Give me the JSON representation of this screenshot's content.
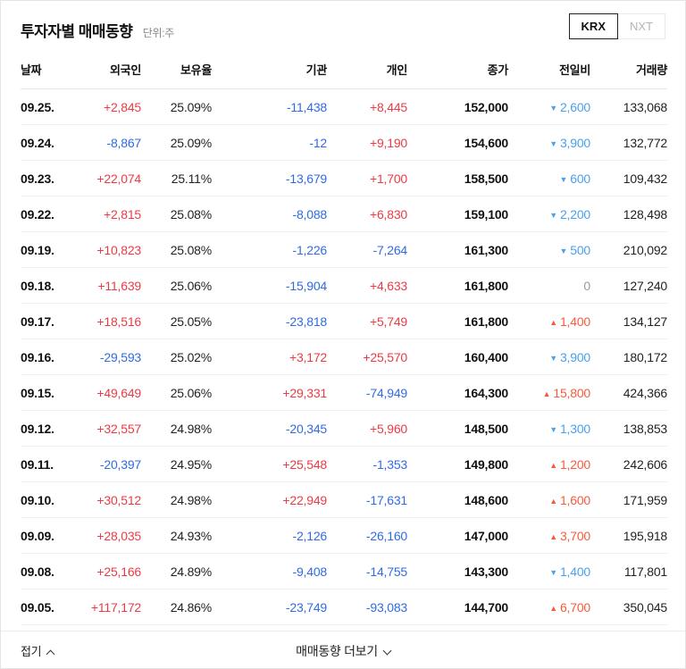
{
  "page": {
    "title": "투자자별 매매동향",
    "unit": "단위:주"
  },
  "market_tabs": [
    {
      "label": "KRX",
      "active": true
    },
    {
      "label": "NXT",
      "active": false
    }
  ],
  "colors": {
    "positive_red": "#ee3a44",
    "negative_blue": "#2f6be5",
    "change_up_red": "#f75b3b",
    "change_down_blue": "#49a0ef",
    "change_flat_gray": "#999999"
  },
  "table": {
    "columns": [
      "날짜",
      "외국인",
      "보유율",
      "기관",
      "개인",
      "종가",
      "전일비",
      "거래량"
    ],
    "rows": [
      {
        "date": "09.25.",
        "foreign": "+2,845",
        "ratio": "25.09%",
        "inst": "-11,438",
        "indiv": "+8,445",
        "close": "152,000",
        "change": "2,600",
        "dir": "down",
        "volume": "133,068"
      },
      {
        "date": "09.24.",
        "foreign": "-8,867",
        "ratio": "25.09%",
        "inst": "-12",
        "indiv": "+9,190",
        "close": "154,600",
        "change": "3,900",
        "dir": "down",
        "volume": "132,772"
      },
      {
        "date": "09.23.",
        "foreign": "+22,074",
        "ratio": "25.11%",
        "inst": "-13,679",
        "indiv": "+1,700",
        "close": "158,500",
        "change": "600",
        "dir": "down",
        "volume": "109,432"
      },
      {
        "date": "09.22.",
        "foreign": "+2,815",
        "ratio": "25.08%",
        "inst": "-8,088",
        "indiv": "+6,830",
        "close": "159,100",
        "change": "2,200",
        "dir": "down",
        "volume": "128,498"
      },
      {
        "date": "09.19.",
        "foreign": "+10,823",
        "ratio": "25.08%",
        "inst": "-1,226",
        "indiv": "-7,264",
        "close": "161,300",
        "change": "500",
        "dir": "down",
        "volume": "210,092"
      },
      {
        "date": "09.18.",
        "foreign": "+11,639",
        "ratio": "25.06%",
        "inst": "-15,904",
        "indiv": "+4,633",
        "close": "161,800",
        "change": "0",
        "dir": "flat",
        "volume": "127,240"
      },
      {
        "date": "09.17.",
        "foreign": "+18,516",
        "ratio": "25.05%",
        "inst": "-23,818",
        "indiv": "+5,749",
        "close": "161,800",
        "change": "1,400",
        "dir": "up",
        "volume": "134,127"
      },
      {
        "date": "09.16.",
        "foreign": "-29,593",
        "ratio": "25.02%",
        "inst": "+3,172",
        "indiv": "+25,570",
        "close": "160,400",
        "change": "3,900",
        "dir": "down",
        "volume": "180,172"
      },
      {
        "date": "09.15.",
        "foreign": "+49,649",
        "ratio": "25.06%",
        "inst": "+29,331",
        "indiv": "-74,949",
        "close": "164,300",
        "change": "15,800",
        "dir": "up",
        "volume": "424,366"
      },
      {
        "date": "09.12.",
        "foreign": "+32,557",
        "ratio": "24.98%",
        "inst": "-20,345",
        "indiv": "+5,960",
        "close": "148,500",
        "change": "1,300",
        "dir": "down",
        "volume": "138,853"
      },
      {
        "date": "09.11.",
        "foreign": "-20,397",
        "ratio": "24.95%",
        "inst": "+25,548",
        "indiv": "-1,353",
        "close": "149,800",
        "change": "1,200",
        "dir": "up",
        "volume": "242,606"
      },
      {
        "date": "09.10.",
        "foreign": "+30,512",
        "ratio": "24.98%",
        "inst": "+22,949",
        "indiv": "-17,631",
        "close": "148,600",
        "change": "1,600",
        "dir": "up",
        "volume": "171,959"
      },
      {
        "date": "09.09.",
        "foreign": "+28,035",
        "ratio": "24.93%",
        "inst": "-2,126",
        "indiv": "-26,160",
        "close": "147,000",
        "change": "3,700",
        "dir": "up",
        "volume": "195,918"
      },
      {
        "date": "09.08.",
        "foreign": "+25,166",
        "ratio": "24.89%",
        "inst": "-9,408",
        "indiv": "-14,755",
        "close": "143,300",
        "change": "1,400",
        "dir": "down",
        "volume": "117,801"
      },
      {
        "date": "09.05.",
        "foreign": "+117,172",
        "ratio": "24.86%",
        "inst": "-23,749",
        "indiv": "-93,083",
        "close": "144,700",
        "change": "6,700",
        "dir": "up",
        "volume": "350,045"
      }
    ]
  },
  "icons": {
    "down_arrow": "▼",
    "up_arrow": "▲"
  },
  "footer": {
    "collapse_label": "접기",
    "more_label": "매매동향 더보기"
  }
}
